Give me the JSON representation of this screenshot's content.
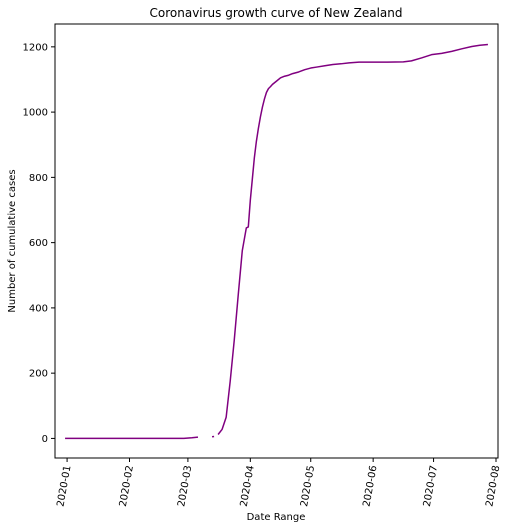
{
  "chart_data": {
    "type": "line",
    "title": "Coronavirus growth curve of New Zealand",
    "xlabel": "Date Range",
    "ylabel": "Number of cumulative cases",
    "x_type": "date",
    "xlim": [
      "2019-12-26",
      "2020-08-02"
    ],
    "ylim": [
      -60,
      1270
    ],
    "grid": false,
    "legend": "none",
    "colors": {
      "line": "#800080",
      "axis": "#000000",
      "background": "#ffffff"
    },
    "x_ticks": [
      "2020-01",
      "2020-02",
      "2020-03",
      "2020-04",
      "2020-05",
      "2020-06",
      "2020-07",
      "2020-08"
    ],
    "y_ticks": [
      0,
      200,
      400,
      600,
      800,
      1000,
      1200
    ],
    "series": [
      {
        "segments": [
          {
            "x": [
              "2019-12-31",
              "2020-01-15",
              "2020-02-01",
              "2020-02-15",
              "2020-02-28",
              "2020-03-03",
              "2020-03-06"
            ],
            "y": [
              0,
              0,
              0,
              0,
              0,
              2,
              4
            ]
          },
          {
            "x": [
              "2020-03-13",
              "2020-03-14"
            ],
            "y": [
              5,
              6
            ]
          },
          {
            "x": [
              "2020-03-16",
              "2020-03-18",
              "2020-03-20",
              "2020-03-22",
              "2020-03-24",
              "2020-03-26",
              "2020-03-28",
              "2020-03-30",
              "2020-03-31",
              "2020-04-01",
              "2020-04-02",
              "2020-04-03",
              "2020-04-04",
              "2020-04-05",
              "2020-04-06",
              "2020-04-07",
              "2020-04-08",
              "2020-04-09",
              "2020-04-10",
              "2020-04-11",
              "2020-04-12",
              "2020-04-14",
              "2020-04-16",
              "2020-04-18",
              "2020-04-20",
              "2020-04-22",
              "2020-04-25",
              "2020-04-28",
              "2020-05-01",
              "2020-05-04",
              "2020-05-08",
              "2020-05-12",
              "2020-05-16",
              "2020-05-20",
              "2020-05-25",
              "2020-06-01",
              "2020-06-08",
              "2020-06-16",
              "2020-06-20",
              "2020-06-25",
              "2020-06-30",
              "2020-07-05",
              "2020-07-10",
              "2020-07-15",
              "2020-07-20",
              "2020-07-24",
              "2020-07-28"
            ],
            "y": [
              12,
              28,
              65,
              175,
              300,
              440,
              575,
              645,
              648,
              730,
              795,
              860,
              910,
              950,
              985,
              1015,
              1040,
              1060,
              1072,
              1078,
              1085,
              1095,
              1105,
              1110,
              1113,
              1118,
              1123,
              1130,
              1135,
              1138,
              1142,
              1146,
              1148,
              1151,
              1153,
              1153,
              1153,
              1154,
              1157,
              1166,
              1176,
              1180,
              1186,
              1194,
              1201,
              1205,
              1207
            ]
          }
        ]
      }
    ]
  }
}
